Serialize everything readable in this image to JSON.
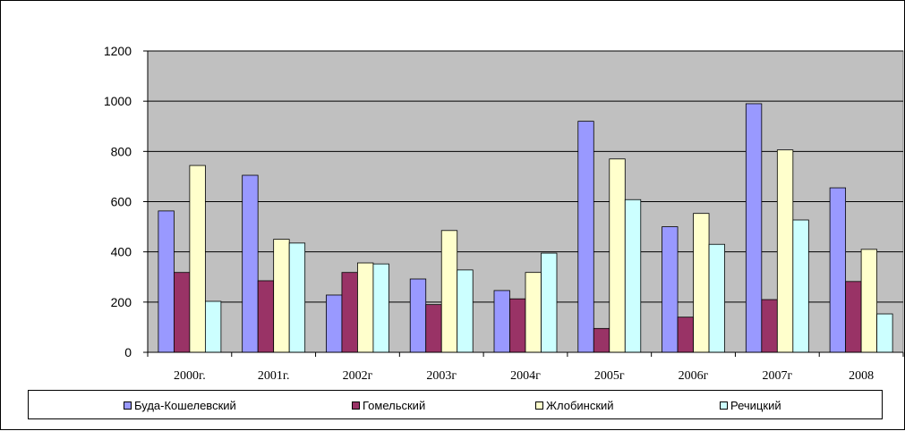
{
  "chart_data": {
    "type": "bar",
    "title": "",
    "xlabel": "",
    "ylabel": "",
    "ylim": [
      0,
      1200
    ],
    "yticks": [
      0,
      200,
      400,
      600,
      800,
      1000,
      1200
    ],
    "grid": true,
    "legend_position": "bottom",
    "plot_background": "#c0c0c0",
    "categories": [
      "2000г.",
      "2001г.",
      "2002г",
      "2003г",
      "2004г",
      "2005г",
      "2006г",
      "2007г",
      "2008"
    ],
    "series": [
      {
        "name": "Буда-Кошелевский",
        "color": "#9999ff",
        "values": [
          563,
          705,
          228,
          292,
          246,
          920,
          500,
          990,
          655
        ]
      },
      {
        "name": "Гомельский",
        "color": "#993366",
        "values": [
          318,
          285,
          318,
          190,
          213,
          95,
          140,
          210,
          282
        ]
      },
      {
        "name": "Жлобинский",
        "color": "#ffffcc",
        "values": [
          744,
          450,
          356,
          485,
          318,
          770,
          553,
          806,
          410
        ]
      },
      {
        "name": "Речицкий",
        "color": "#ccffff",
        "values": [
          203,
          435,
          352,
          328,
          395,
          608,
          430,
          527,
          153
        ]
      }
    ]
  }
}
